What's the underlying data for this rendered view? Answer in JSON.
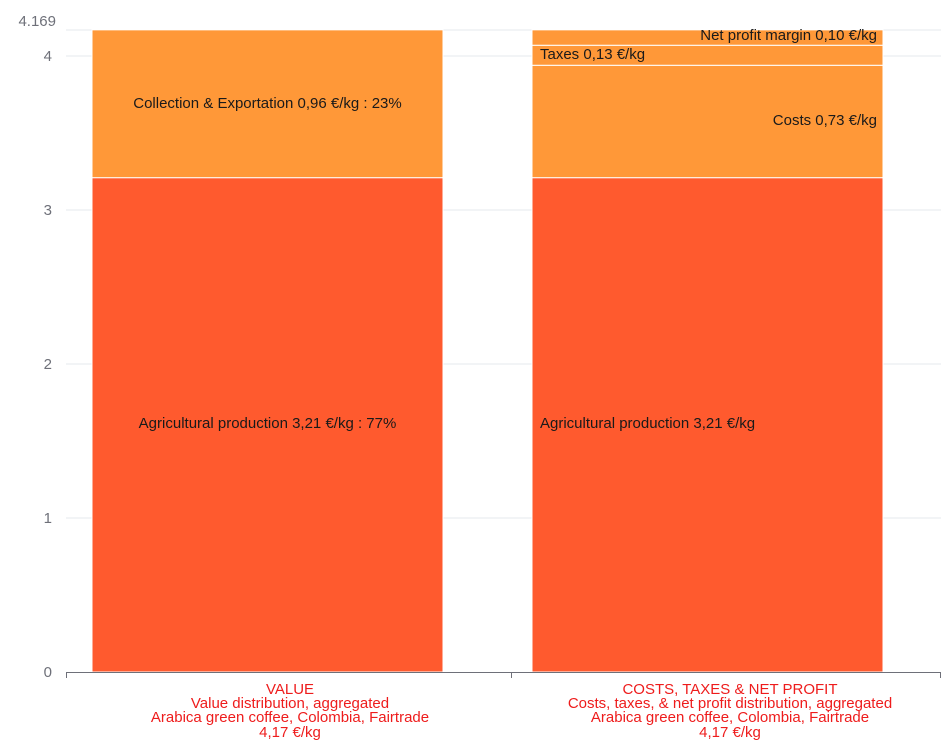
{
  "chart_data": {
    "type": "bar",
    "stacked": true,
    "ylim": [
      0,
      4.169
    ],
    "yticks": [
      0,
      1,
      2,
      3,
      4
    ],
    "ymax_label": "4.169",
    "grid": true,
    "series_colors": {
      "Agricultural production": "#ff5a2e",
      "Collection & Exportation": "#ff9838",
      "Costs": "#ff9838",
      "Taxes": "#ff9838",
      "Net profit margin": "#ff9838"
    },
    "bars": [
      {
        "category_lines": [
          "VALUE",
          "Value distribution, aggregated",
          "Arabica green coffee, Colombia, Fairtrade",
          "4,17 €/kg"
        ],
        "segments": [
          {
            "name": "Agricultural production",
            "value": 3.21,
            "label": "Agricultural production 3,21 €/kg : 77%",
            "color": "#ff5a2e",
            "align": "center"
          },
          {
            "name": "Collection & Exportation",
            "value": 0.96,
            "label": "Collection & Exportation 0,96 €/kg : 23%",
            "color": "#ff9838",
            "align": "center"
          }
        ]
      },
      {
        "category_lines": [
          "COSTS, TAXES & NET PROFIT",
          "Costs, taxes, & net profit distribution, aggregated",
          "Arabica green coffee, Colombia, Fairtrade",
          "4,17 €/kg"
        ],
        "segments": [
          {
            "name": "Agricultural production",
            "value": 3.21,
            "label": "Agricultural production 3,21 €/kg",
            "color": "#ff5a2e",
            "align": "left"
          },
          {
            "name": "Costs",
            "value": 0.73,
            "label": "Costs 0,73 €/kg",
            "color": "#ff9838",
            "align": "right"
          },
          {
            "name": "Taxes",
            "value": 0.13,
            "label": "Taxes 0,13 €/kg",
            "color": "#ff9838",
            "align": "left"
          },
          {
            "name": "Net profit margin",
            "value": 0.1,
            "label": "Net profit margin 0,10 €/kg",
            "color": "#ff9838",
            "align": "right-top"
          }
        ]
      }
    ]
  }
}
